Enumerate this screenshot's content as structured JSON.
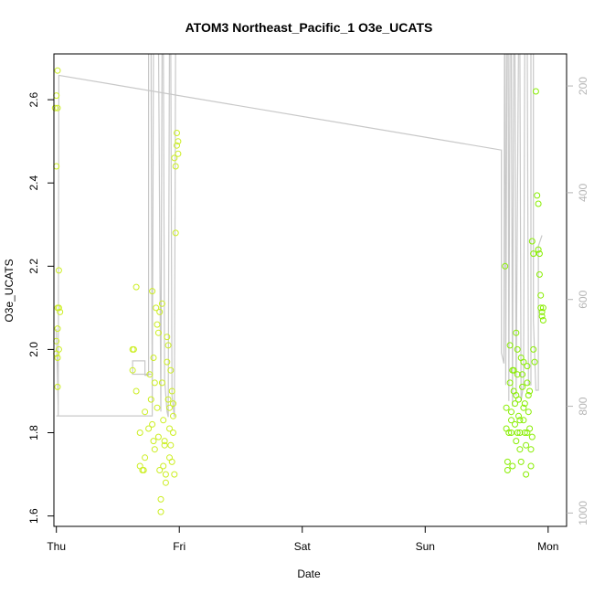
{
  "chart_data": {
    "type": "scatter",
    "title": "ATOM3 Northeast_Pacific_1 O3e_UCATS",
    "xlabel": "Date",
    "ylabel": "O3e_UCATS",
    "x_ticks": [
      "Thu",
      "Fri",
      "Sat",
      "Sun",
      "Mon"
    ],
    "xlim": [
      -0.02,
      4.15
    ],
    "ylim": [
      1.575,
      2.71
    ],
    "y_ticks": [
      1.6,
      1.8,
      2.0,
      2.2,
      2.4,
      2.6
    ],
    "y_tick_labels": [
      "1.6",
      "1.8",
      "2.0",
      "2.2",
      "2.4",
      "2.6"
    ],
    "y2_label": "",
    "y2_ticks": [
      200,
      400,
      600,
      800,
      1000
    ],
    "y2_tick_labels": [
      "200",
      "400",
      "600",
      "800",
      "1000"
    ],
    "y2lim": [
      1025,
      140
    ],
    "grid": false,
    "legend": "none",
    "colors": {
      "early_points": "#ccee22",
      "late_points": "#88ee00",
      "pressure_line": "#c8c8c8",
      "right_axis": "#b5b5b5"
    },
    "series": [
      {
        "values": [
          [
            0.01,
            2.67
          ],
          [
            0.0,
            2.61
          ],
          [
            -0.01,
            2.58
          ],
          [
            0.01,
            2.58
          ],
          [
            0.0,
            2.44
          ],
          [
            0.02,
            2.19
          ],
          [
            0.01,
            2.1
          ],
          [
            0.02,
            2.1
          ],
          [
            0.03,
            2.09
          ],
          [
            0.01,
            2.05
          ],
          [
            0.0,
            2.02
          ],
          [
            0.02,
            2.0
          ],
          [
            0.0,
            1.99
          ],
          [
            0.01,
            1.98
          ],
          [
            0.01,
            1.91
          ],
          [
            0.62,
            2.0
          ],
          [
            0.63,
            2.0
          ],
          [
            0.62,
            1.95
          ],
          [
            0.65,
            1.9
          ],
          [
            0.65,
            2.15
          ],
          [
            0.7,
            1.71
          ],
          [
            0.71,
            1.71
          ],
          [
            0.68,
            1.72
          ],
          [
            0.68,
            1.8
          ],
          [
            0.72,
            1.74
          ],
          [
            0.72,
            1.85
          ],
          [
            0.75,
            1.81
          ],
          [
            0.78,
            2.14
          ],
          [
            0.76,
            1.94
          ],
          [
            0.77,
            1.88
          ],
          [
            0.78,
            1.82
          ],
          [
            0.79,
            1.78
          ],
          [
            0.8,
            1.76
          ],
          [
            0.81,
            2.1
          ],
          [
            0.82,
            2.06
          ],
          [
            0.8,
            1.92
          ],
          [
            0.82,
            1.86
          ],
          [
            0.83,
            1.79
          ],
          [
            0.84,
            1.71
          ],
          [
            0.85,
            1.64
          ],
          [
            0.85,
            1.61
          ],
          [
            0.84,
            2.09
          ],
          [
            0.86,
            2.11
          ],
          [
            0.86,
            1.92
          ],
          [
            0.87,
            1.83
          ],
          [
            0.88,
            1.77
          ],
          [
            0.89,
            1.7
          ],
          [
            0.89,
            1.68
          ],
          [
            0.9,
            2.03
          ],
          [
            0.91,
            2.01
          ],
          [
            0.9,
            1.97
          ],
          [
            0.91,
            1.88
          ],
          [
            0.92,
            1.86
          ],
          [
            0.92,
            1.81
          ],
          [
            0.93,
            1.77
          ],
          [
            0.94,
            1.73
          ],
          [
            0.93,
            1.95
          ],
          [
            0.94,
            1.9
          ],
          [
            0.95,
            1.84
          ],
          [
            0.95,
            1.8
          ],
          [
            0.96,
            1.7
          ],
          [
            0.97,
            2.28
          ],
          [
            0.98,
            2.52
          ],
          [
            0.98,
            2.49
          ],
          [
            0.99,
            2.47
          ],
          [
            0.97,
            2.44
          ],
          [
            0.96,
            2.46
          ],
          [
            0.99,
            2.5
          ],
          [
            0.79,
            1.98
          ],
          [
            0.83,
            2.04
          ],
          [
            0.87,
            1.72
          ],
          [
            0.88,
            1.78
          ],
          [
            0.92,
            1.74
          ],
          [
            0.95,
            1.87
          ]
        ]
      },
      {
        "values": [
          [
            3.65,
            2.2
          ],
          [
            3.66,
            1.86
          ],
          [
            3.66,
            1.81
          ],
          [
            3.67,
            1.73
          ],
          [
            3.67,
            1.71
          ],
          [
            3.68,
            1.8
          ],
          [
            3.69,
            2.01
          ],
          [
            3.69,
            1.92
          ],
          [
            3.7,
            1.85
          ],
          [
            3.7,
            1.8
          ],
          [
            3.71,
            1.72
          ],
          [
            3.71,
            1.95
          ],
          [
            3.72,
            1.9
          ],
          [
            3.73,
            1.87
          ],
          [
            3.73,
            1.82
          ],
          [
            3.74,
            1.78
          ],
          [
            3.74,
            2.04
          ],
          [
            3.75,
            2.0
          ],
          [
            3.75,
            1.94
          ],
          [
            3.76,
            1.88
          ],
          [
            3.76,
            1.84
          ],
          [
            3.77,
            1.8
          ],
          [
            3.77,
            1.76
          ],
          [
            3.78,
            1.73
          ],
          [
            3.78,
            1.98
          ],
          [
            3.79,
            1.94
          ],
          [
            3.79,
            1.91
          ],
          [
            3.8,
            1.86
          ],
          [
            3.8,
            1.83
          ],
          [
            3.81,
            1.8
          ],
          [
            3.82,
            1.77
          ],
          [
            3.82,
            1.7
          ],
          [
            3.83,
            1.96
          ],
          [
            3.83,
            1.92
          ],
          [
            3.84,
            1.89
          ],
          [
            3.84,
            1.85
          ],
          [
            3.85,
            1.81
          ],
          [
            3.86,
            1.76
          ],
          [
            3.86,
            1.72
          ],
          [
            3.87,
            2.26
          ],
          [
            3.88,
            2.23
          ],
          [
            3.88,
            2.0
          ],
          [
            3.89,
            1.97
          ],
          [
            3.9,
            2.62
          ],
          [
            3.91,
            2.37
          ],
          [
            3.92,
            2.35
          ],
          [
            3.92,
            2.24
          ],
          [
            3.93,
            2.23
          ],
          [
            3.93,
            2.18
          ],
          [
            3.94,
            2.13
          ],
          [
            3.94,
            2.1
          ],
          [
            3.95,
            2.09
          ],
          [
            3.95,
            2.08
          ],
          [
            3.96,
            2.1
          ],
          [
            3.96,
            2.07
          ],
          [
            3.72,
            1.95
          ],
          [
            3.74,
            1.89
          ],
          [
            3.77,
            1.83
          ],
          [
            3.81,
            1.87
          ],
          [
            3.85,
            1.9
          ],
          [
            3.87,
            1.79
          ],
          [
            3.7,
            1.83
          ],
          [
            3.75,
            1.8
          ],
          [
            3.8,
            1.97
          ],
          [
            3.83,
            1.8
          ]
        ]
      }
    ],
    "pressure_path": [
      [
        0.0,
        655
      ],
      [
        0.015,
        800
      ],
      [
        0.015,
        818
      ],
      [
        0.02,
        200
      ],
      [
        0.02,
        180
      ],
      [
        3.62,
        320
      ],
      [
        3.62,
        700
      ],
      [
        3.64,
        720
      ],
      [
        3.645,
        100
      ],
      [
        3.65,
        100
      ],
      [
        3.655,
        760
      ],
      [
        3.665,
        100
      ],
      [
        3.675,
        100
      ],
      [
        3.68,
        790
      ],
      [
        3.69,
        140
      ],
      [
        3.7,
        100
      ],
      [
        3.71,
        800
      ],
      [
        3.72,
        100
      ],
      [
        3.73,
        140
      ],
      [
        3.74,
        780
      ],
      [
        3.76,
        100
      ],
      [
        3.77,
        140
      ],
      [
        3.78,
        790
      ],
      [
        3.8,
        760
      ],
      [
        3.81,
        100
      ],
      [
        3.83,
        100
      ],
      [
        3.84,
        760
      ],
      [
        3.86,
        760
      ],
      [
        3.86,
        100
      ],
      [
        3.88,
        140
      ],
      [
        3.88,
        640
      ],
      [
        3.9,
        770
      ],
      [
        3.92,
        770
      ],
      [
        3.92,
        500
      ],
      [
        3.95,
        480
      ]
    ],
    "pressure_path_fri": [
      [
        0.0,
        818
      ],
      [
        0.78,
        818
      ],
      [
        0.78,
        740
      ],
      [
        0.62,
        740
      ],
      [
        0.62,
        715
      ],
      [
        0.72,
        715
      ],
      [
        0.72,
        742
      ],
      [
        0.75,
        742
      ],
      [
        0.75,
        100
      ],
      [
        0.76,
        100
      ],
      [
        0.77,
        130
      ],
      [
        0.78,
        810
      ],
      [
        0.79,
        100
      ],
      [
        0.83,
        100
      ],
      [
        0.85,
        810
      ],
      [
        0.86,
        100
      ],
      [
        0.87,
        100
      ],
      [
        0.88,
        750
      ],
      [
        0.9,
        810
      ],
      [
        0.91,
        820
      ],
      [
        0.92,
        100
      ],
      [
        0.93,
        100
      ],
      [
        0.94,
        780
      ],
      [
        0.96,
        820
      ],
      [
        0.97,
        100
      ],
      [
        0.98,
        100
      ]
    ]
  }
}
